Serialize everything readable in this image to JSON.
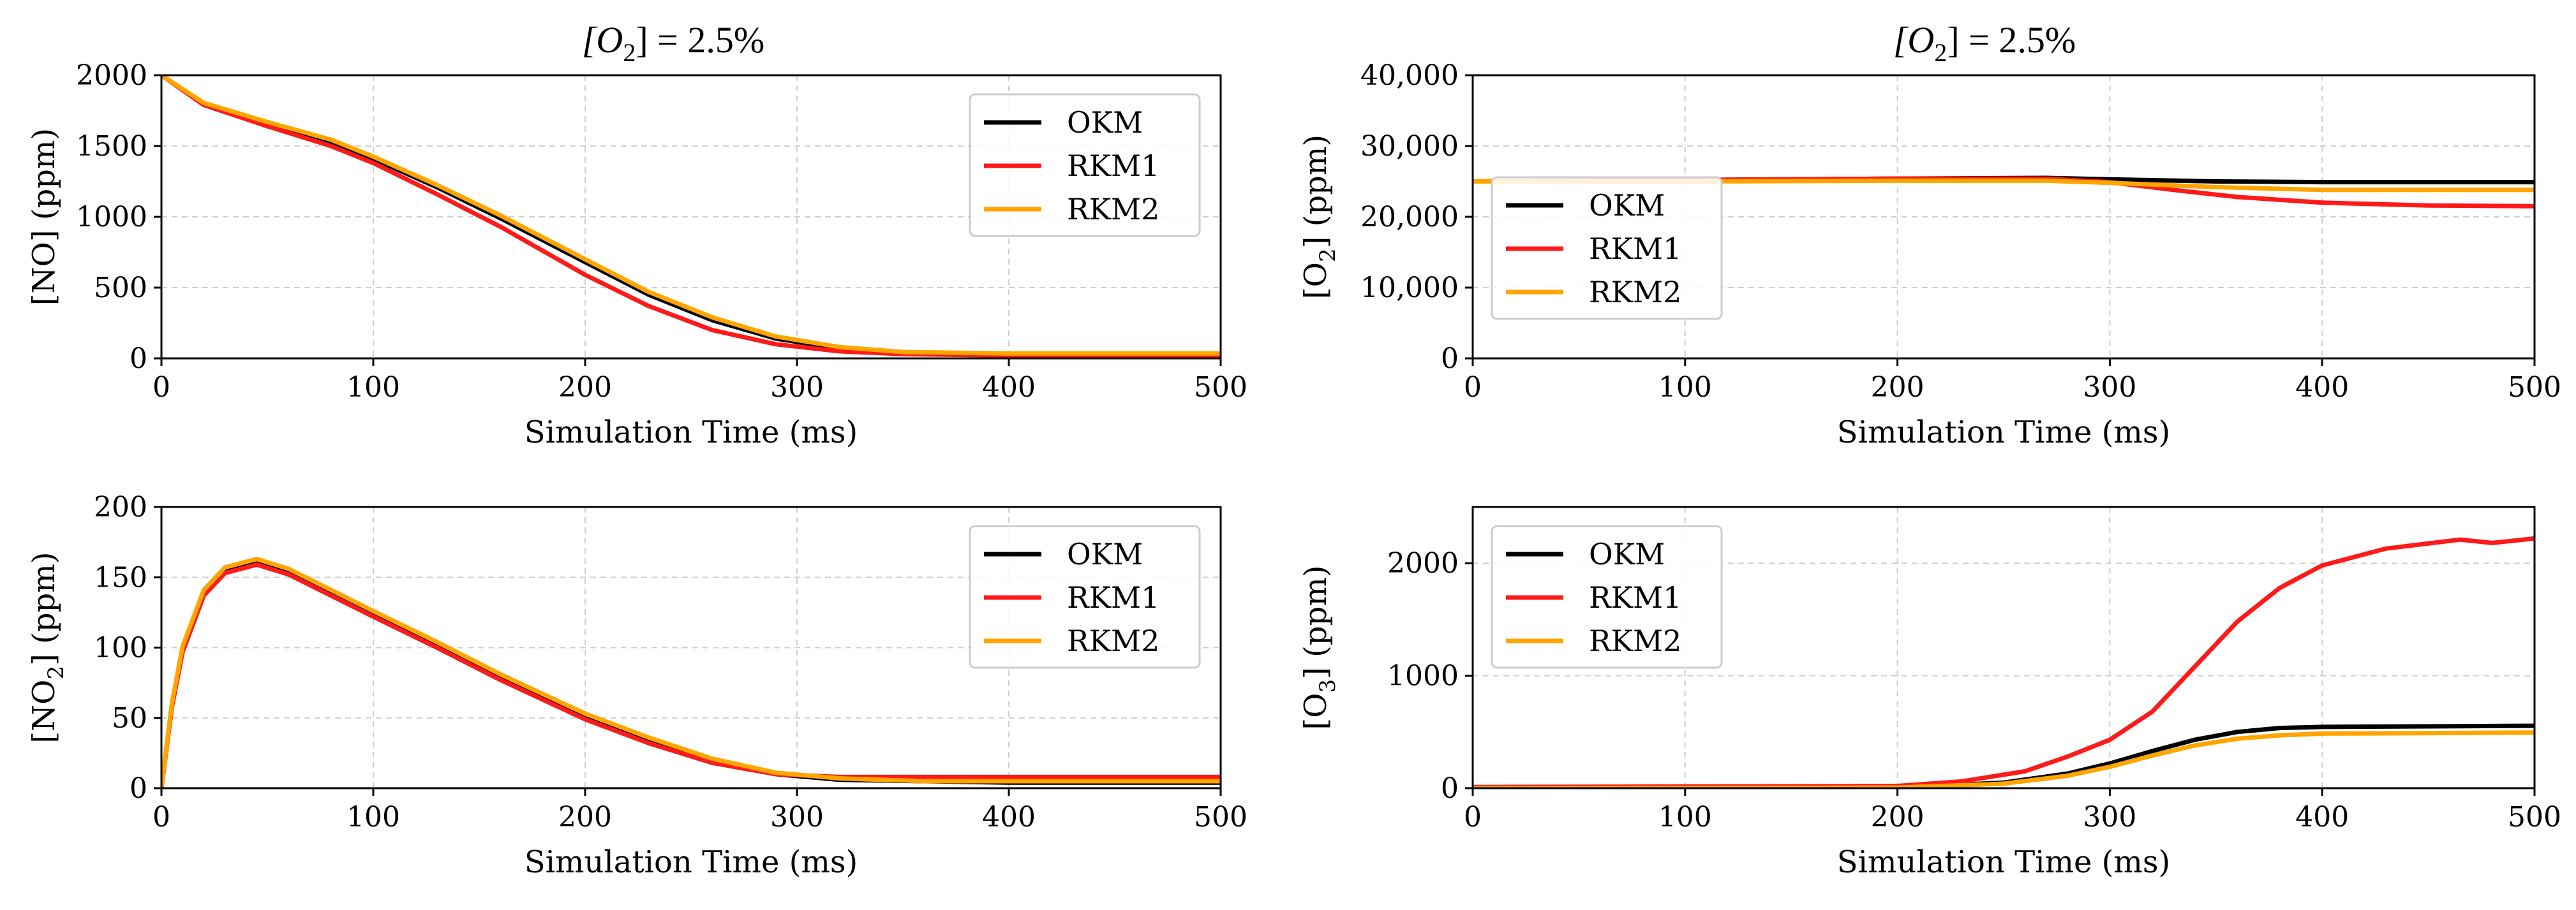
{
  "colors": {
    "OKM": "#000000",
    "RKM1": "#ff1a1a",
    "RKM2": "#ffa500"
  },
  "chart_data": [
    {
      "type": "line",
      "title": "[O2] = 2.5%",
      "title_main": "[O",
      "title_sub": "2",
      "title_rest": "] = 2.5%",
      "ylabel": "[NO] (ppm)",
      "ylabel_parts": [
        "[NO] (ppm)",
        "",
        ""
      ],
      "xlabel": "Simulation Time (ms)",
      "xlim": [
        0,
        500
      ],
      "ylim": [
        0,
        2000
      ],
      "xticks": [
        "0",
        "100",
        "200",
        "300",
        "400",
        "500"
      ],
      "yticks": [
        "0",
        "500",
        "1000",
        "1500",
        "2000"
      ],
      "legend": [
        "OKM",
        "RKM1",
        "RKM2"
      ],
      "legend_position": "top-right",
      "series": [
        {
          "name": "OKM",
          "x": [
            0,
            20,
            50,
            80,
            100,
            130,
            160,
            200,
            230,
            260,
            290,
            320,
            350,
            400,
            450,
            500
          ],
          "y": [
            2000,
            1800,
            1660,
            1530,
            1410,
            1210,
            990,
            680,
            450,
            270,
            140,
            70,
            40,
            30,
            30,
            30
          ]
        },
        {
          "name": "RKM1",
          "x": [
            0,
            20,
            50,
            80,
            100,
            130,
            160,
            200,
            230,
            260,
            290,
            320,
            350,
            400,
            450,
            500
          ],
          "y": [
            2000,
            1790,
            1640,
            1500,
            1380,
            1160,
            930,
            590,
            370,
            200,
            100,
            50,
            30,
            20,
            20,
            20
          ]
        },
        {
          "name": "RKM2",
          "x": [
            0,
            20,
            50,
            80,
            100,
            130,
            160,
            200,
            230,
            260,
            290,
            320,
            350,
            400,
            450,
            500
          ],
          "y": [
            2000,
            1805,
            1670,
            1545,
            1425,
            1225,
            1010,
            700,
            470,
            290,
            155,
            80,
            45,
            35,
            35,
            35
          ]
        }
      ]
    },
    {
      "type": "line",
      "title": "[O2] = 2.5%",
      "title_main": "[O",
      "title_sub": "2",
      "title_rest": "] = 2.5%",
      "ylabel": "[O2] (ppm)",
      "ylabel_parts": [
        "[O",
        "2",
        "] (ppm)"
      ],
      "xlabel": "Simulation Time (ms)",
      "xlim": [
        0,
        500
      ],
      "ylim": [
        0,
        40000
      ],
      "xticks": [
        "0",
        "100",
        "200",
        "300",
        "400",
        "500"
      ],
      "yticks": [
        "0",
        "10,000",
        "20,000",
        "30,000",
        "40,000"
      ],
      "legend": [
        "OKM",
        "RKM1",
        "RKM2"
      ],
      "legend_position": "center-left",
      "series": [
        {
          "name": "OKM",
          "x": [
            0,
            100,
            200,
            270,
            300,
            350,
            400,
            450,
            500
          ],
          "y": [
            25000,
            25200,
            25400,
            25500,
            25300,
            25000,
            24900,
            24900,
            24900
          ]
        },
        {
          "name": "RKM1",
          "x": [
            0,
            100,
            200,
            270,
            300,
            330,
            360,
            400,
            450,
            500
          ],
          "y": [
            25000,
            25200,
            25400,
            25400,
            24900,
            23800,
            22800,
            22000,
            21600,
            21500
          ]
        },
        {
          "name": "RKM2",
          "x": [
            0,
            100,
            200,
            270,
            300,
            350,
            400,
            450,
            500
          ],
          "y": [
            25000,
            25000,
            25100,
            25100,
            24800,
            24200,
            23800,
            23800,
            23800
          ]
        }
      ]
    },
    {
      "type": "line",
      "ylabel": "[NO2] (ppm)",
      "ylabel_parts": [
        "[NO",
        "2",
        "] (ppm)"
      ],
      "xlabel": "Simulation Time (ms)",
      "xlim": [
        0,
        500
      ],
      "ylim": [
        0,
        200
      ],
      "xticks": [
        "0",
        "100",
        "200",
        "300",
        "400",
        "500"
      ],
      "yticks": [
        "0",
        "50",
        "100",
        "150",
        "200"
      ],
      "legend": [
        "OKM",
        "RKM1",
        "RKM2"
      ],
      "legend_position": "top-right",
      "series": [
        {
          "name": "OKM",
          "x": [
            0,
            5,
            10,
            20,
            30,
            45,
            60,
            80,
            100,
            130,
            160,
            200,
            230,
            260,
            290,
            320,
            360,
            400,
            450,
            500
          ],
          "y": [
            0,
            60,
            100,
            140,
            156,
            162,
            155,
            140,
            125,
            103,
            80,
            52,
            35,
            20,
            10,
            6,
            5,
            4,
            4,
            4
          ]
        },
        {
          "name": "RKM1",
          "x": [
            0,
            5,
            10,
            20,
            30,
            45,
            60,
            80,
            100,
            130,
            160,
            200,
            230,
            260,
            290,
            320,
            360,
            400,
            450,
            500
          ],
          "y": [
            0,
            58,
            97,
            137,
            153,
            159,
            152,
            137,
            122,
            100,
            77,
            49,
            32,
            18,
            10,
            8,
            8,
            8,
            8,
            8
          ]
        },
        {
          "name": "RKM2",
          "x": [
            0,
            5,
            10,
            20,
            30,
            45,
            60,
            80,
            100,
            130,
            160,
            200,
            230,
            260,
            290,
            320,
            360,
            400,
            450,
            500
          ],
          "y": [
            0,
            61,
            101,
            141,
            157,
            163,
            156,
            141,
            126,
            104,
            81,
            53,
            36,
            21,
            11,
            7,
            5,
            5,
            5,
            5
          ]
        }
      ]
    },
    {
      "type": "line",
      "ylabel": "[O3] (ppm)",
      "ylabel_parts": [
        "[O",
        "3",
        "] (ppm)"
      ],
      "xlabel": "Simulation Time (ms)",
      "xlim": [
        0,
        500
      ],
      "ylim": [
        0,
        2500
      ],
      "xticks": [
        "0",
        "100",
        "200",
        "300",
        "400",
        "500"
      ],
      "yticks": [
        "0",
        "1000",
        "2000"
      ],
      "legend": [
        "OKM",
        "RKM1",
        "RKM2"
      ],
      "legend_position": "top-left",
      "series": [
        {
          "name": "OKM",
          "x": [
            0,
            200,
            250,
            280,
            300,
            320,
            340,
            360,
            380,
            400,
            450,
            500
          ],
          "y": [
            0,
            5,
            50,
            130,
            220,
            330,
            430,
            500,
            535,
            545,
            550,
            555
          ]
        },
        {
          "name": "RKM1",
          "x": [
            0,
            200,
            230,
            260,
            280,
            300,
            320,
            340,
            360,
            380,
            400,
            430,
            465,
            480,
            500
          ],
          "y": [
            10,
            20,
            60,
            150,
            280,
            430,
            680,
            1080,
            1480,
            1780,
            1980,
            2130,
            2210,
            2180,
            2220
          ]
        },
        {
          "name": "RKM2",
          "x": [
            0,
            200,
            250,
            280,
            300,
            320,
            340,
            360,
            380,
            400,
            450,
            500
          ],
          "y": [
            0,
            5,
            40,
            110,
            190,
            290,
            380,
            440,
            470,
            485,
            490,
            495
          ]
        }
      ]
    }
  ]
}
